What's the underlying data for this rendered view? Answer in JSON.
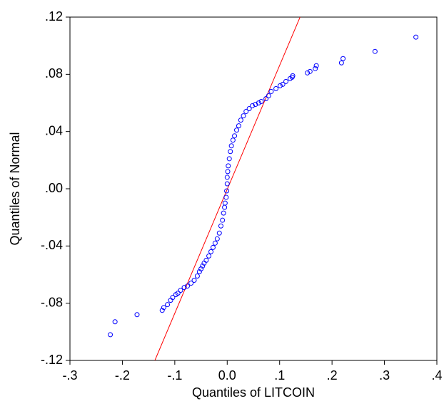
{
  "chart_data": {
    "type": "scatter",
    "xlabel": "Quantiles of LITCOIN",
    "ylabel": "Quantiles of Normal",
    "xlim": [
      -0.3,
      0.4
    ],
    "ylim": [
      -0.12,
      0.12
    ],
    "xticks": [
      {
        "value": -0.3,
        "label": "-.3"
      },
      {
        "value": -0.2,
        "label": "-.2"
      },
      {
        "value": -0.1,
        "label": "-.1"
      },
      {
        "value": 0,
        "label": "0.0"
      },
      {
        "value": 0.1,
        "label": ".1"
      },
      {
        "value": 0.2,
        "label": ".2"
      },
      {
        "value": 0.3,
        "label": ".3"
      },
      {
        "value": 0.4,
        "label": ".4"
      }
    ],
    "yticks": [
      {
        "value": -0.12,
        "label": "-.12"
      },
      {
        "value": -0.08,
        "label": "-.08"
      },
      {
        "value": -0.04,
        "label": "-.04"
      },
      {
        "value": 0,
        "label": ".00"
      },
      {
        "value": 0.04,
        "label": ".04"
      },
      {
        "value": 0.08,
        "label": ".08"
      },
      {
        "value": 0.12,
        "label": ".12"
      }
    ],
    "series": [
      {
        "color": "#0000ff",
        "x": [
          -0.223,
          -0.214,
          -0.172,
          -0.124,
          -0.121,
          -0.114,
          -0.108,
          -0.104,
          -0.098,
          -0.094,
          -0.089,
          -0.082,
          -0.076,
          -0.069,
          -0.063,
          -0.057,
          -0.053,
          -0.05,
          -0.047,
          -0.044,
          -0.04,
          -0.035,
          -0.031,
          -0.027,
          -0.023,
          -0.019,
          -0.015,
          -0.012,
          -0.009,
          -0.007,
          -0.005,
          -0.004,
          -0.002,
          -0.001,
          0.0,
          0.0,
          0.001,
          0.002,
          0.004,
          0.006,
          0.008,
          0.011,
          0.014,
          0.018,
          0.022,
          0.026,
          0.031,
          0.036,
          0.042,
          0.048,
          0.054,
          0.06,
          0.065,
          0.074,
          0.079,
          0.084,
          0.093,
          0.101,
          0.106,
          0.112,
          0.12,
          0.124,
          0.125,
          0.153,
          0.158,
          0.168,
          0.17,
          0.218,
          0.221,
          0.282,
          0.36
        ],
        "values": [
          -0.102,
          -0.093,
          -0.088,
          -0.085,
          -0.083,
          -0.081,
          -0.078,
          -0.076,
          -0.074,
          -0.073,
          -0.071,
          -0.069,
          -0.068,
          -0.066,
          -0.064,
          -0.061,
          -0.058,
          -0.056,
          -0.054,
          -0.052,
          -0.05,
          -0.047,
          -0.044,
          -0.041,
          -0.038,
          -0.035,
          -0.031,
          -0.026,
          -0.022,
          -0.017,
          -0.013,
          -0.01,
          -0.006,
          -0.0015,
          0.0035,
          0.008,
          0.012,
          0.016,
          0.021,
          0.026,
          0.03,
          0.034,
          0.037,
          0.041,
          0.044,
          0.048,
          0.051,
          0.054,
          0.056,
          0.058,
          0.059,
          0.06,
          0.061,
          0.063,
          0.065,
          0.068,
          0.07,
          0.072,
          0.073,
          0.075,
          0.077,
          0.078,
          0.079,
          0.081,
          0.082,
          0.084,
          0.086,
          0.088,
          0.091,
          0.096,
          0.106
        ]
      }
    ],
    "reference_line": {
      "color": "#ff0000",
      "x": [
        -0.138,
        0.139
      ],
      "y": [
        -0.12,
        0.12
      ]
    }
  }
}
